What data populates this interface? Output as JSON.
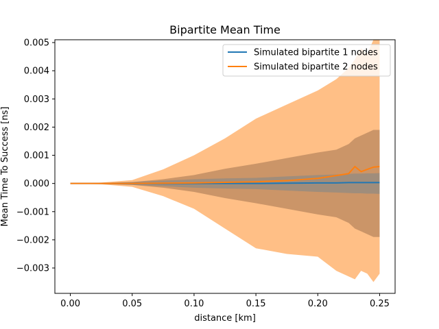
{
  "chart_data": {
    "type": "line",
    "title": "Bipartite Mean Time",
    "xlabel": "distance [km]",
    "ylabel": "Mean Time To Success [ns]",
    "xlim": [
      -0.0125,
      0.2625
    ],
    "ylim": [
      -0.0039,
      0.0051
    ],
    "xticks": [
      0.0,
      0.05,
      0.1,
      0.15,
      0.2,
      0.25
    ],
    "xtick_labels": [
      "0.00",
      "0.05",
      "0.10",
      "0.15",
      "0.20",
      "0.25"
    ],
    "yticks": [
      -0.003,
      -0.002,
      -0.001,
      0.0,
      0.001,
      0.002,
      0.003,
      0.004,
      0.005
    ],
    "ytick_labels": [
      "−0.003",
      "−0.002",
      "−0.001",
      "0.000",
      "0.001",
      "0.002",
      "0.003",
      "0.004",
      "0.005"
    ],
    "grid": false,
    "legend_position": "top-right",
    "x": [
      0.0,
      0.025,
      0.05,
      0.075,
      0.1,
      0.125,
      0.15,
      0.175,
      0.2,
      0.215,
      0.225,
      0.23,
      0.235,
      0.24,
      0.245,
      0.25
    ],
    "series": [
      {
        "name": "Simulated bipartite 1 nodes",
        "color": "#1f77b4",
        "mean": [
          0.0,
          0.0,
          0.0,
          0.0,
          0.0,
          0.0,
          0.0,
          1e-05,
          2e-05,
          2e-05,
          3e-05,
          3e-05,
          3e-05,
          3e-05,
          3e-05,
          3e-05
        ],
        "band_lower": [
          0.0,
          -1e-05,
          -5e-05,
          -0.0001,
          -0.00015,
          -0.00018,
          -0.0002,
          -0.00025,
          -0.0003,
          -0.00032,
          -0.00034,
          -0.00035,
          -0.00035,
          -0.00036,
          -0.00036,
          -0.00037
        ],
        "band_upper": [
          0.0,
          1e-05,
          5e-05,
          0.0001,
          0.00015,
          0.00018,
          0.0002,
          0.00025,
          0.0003,
          0.00032,
          0.00034,
          0.00035,
          0.00035,
          0.00036,
          0.00036,
          0.00037
        ]
      },
      {
        "name": "Simulated bipartite 2 nodes",
        "color": "#ff7f0e",
        "band_color": "#ffbf86",
        "mean": [
          0.0,
          0.0,
          0.0,
          1e-05,
          2e-05,
          4e-05,
          6e-05,
          0.0001,
          0.00018,
          0.00028,
          0.00035,
          0.0006,
          0.00042,
          0.0005,
          0.00058,
          0.0006
        ],
        "band_lower": [
          0.0,
          -3e-05,
          -0.00012,
          -0.00045,
          -0.0009,
          -0.0016,
          -0.0023,
          -0.0025,
          -0.0026,
          -0.0031,
          -0.0033,
          -0.0034,
          -0.0031,
          -0.0032,
          -0.0035,
          -0.0032
        ],
        "band_upper": [
          0.0,
          3e-05,
          0.00012,
          0.0005,
          0.001,
          0.0016,
          0.0023,
          0.0028,
          0.0033,
          0.0037,
          0.0041,
          0.0044,
          0.0048,
          0.0046,
          0.0051,
          0.0051
        ],
        "inner_band_lower": [
          0.0,
          -2e-05,
          -5e-05,
          -0.00015,
          -0.0003,
          -0.00052,
          -0.0007,
          -0.0009,
          -0.0011,
          -0.0012,
          -0.0014,
          -0.0016,
          -0.0017,
          -0.0018,
          -0.0019,
          -0.0019
        ],
        "inner_band_upper": [
          0.0,
          2e-05,
          5e-05,
          0.00015,
          0.0003,
          0.00052,
          0.0007,
          0.0009,
          0.0011,
          0.0012,
          0.0014,
          0.0016,
          0.0017,
          0.0018,
          0.0019,
          0.0019
        ]
      }
    ]
  }
}
